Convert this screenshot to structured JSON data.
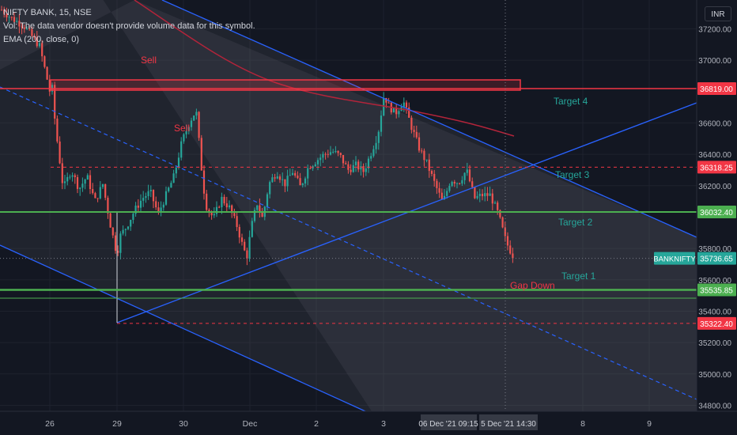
{
  "header": {
    "symbol_line": "NIFTY BANK, 15, NSE",
    "volume_note": "Vol: The data vendor doesn't provide volume data for this symbol.",
    "ema_label": "EMA (200, close, 0)"
  },
  "currency_button": "INR",
  "colors": {
    "background": "#131722",
    "up": "#26a69a",
    "down": "#ef5350",
    "channel": "#2962ff",
    "resistance": "#f23645",
    "support": "#4caf50",
    "ema": "#b2243a",
    "target_text": "#26a69a",
    "sell_text": "#f23645",
    "axis_text": "#b2b5be"
  },
  "chart_data": {
    "type": "candlestick",
    "symbol": "NIFTY BANK",
    "interval": "15",
    "exchange": "NSE",
    "y_axis": {
      "range": [
        34750,
        37320
      ],
      "ticks": [
        "37200.00",
        "37000.00",
        "36600.00",
        "36400.00",
        "36200.00",
        "35800.00",
        "35600.00",
        "35400.00",
        "35200.00",
        "35000.00",
        "34800.00"
      ]
    },
    "x_axis": {
      "ticks": [
        "26",
        "29",
        "30",
        "Dec",
        "2",
        "3",
        "8",
        "9"
      ],
      "crosshair_labels": [
        "06 Dec '21",
        "09:15",
        "5 Dec '21",
        "14:30"
      ]
    },
    "price_labels": [
      {
        "text": "36819.00",
        "value": 36819,
        "kind": "resistance"
      },
      {
        "text": "36318.25",
        "value": 36318.25,
        "kind": "dashed-resistance"
      },
      {
        "text": "36032.40",
        "value": 36032.4,
        "kind": "support"
      },
      {
        "text": "35736.65",
        "value": 35736.65,
        "kind": "last"
      },
      {
        "text": "35535.85",
        "value": 35535.85,
        "kind": "support"
      },
      {
        "text": "35322.40",
        "value": 35322.4,
        "kind": "dashed-support"
      }
    ],
    "last_price_symbol": "BANKNIFTY",
    "annotations": [
      {
        "text": "Sell",
        "kind": "sell"
      },
      {
        "text": "Sell",
        "kind": "sell"
      },
      {
        "text": "Target 4",
        "kind": "target"
      },
      {
        "text": "Target 3",
        "kind": "target"
      },
      {
        "text": "Target 2",
        "kind": "target"
      },
      {
        "text": "Target 1",
        "kind": "target"
      },
      {
        "text": "Gap Down",
        "kind": "sell"
      }
    ],
    "price_path": [
      [
        0,
        37330
      ],
      [
        14,
        37270
      ],
      [
        30,
        37220
      ],
      [
        50,
        37090
      ],
      [
        60,
        36870
      ],
      [
        63,
        36800
      ],
      [
        66,
        36820
      ],
      [
        70,
        36580
      ],
      [
        80,
        36180
      ],
      [
        90,
        36300
      ],
      [
        100,
        36180
      ],
      [
        110,
        36260
      ],
      [
        120,
        36100
      ],
      [
        130,
        36210
      ],
      [
        140,
        35940
      ],
      [
        148,
        35760
      ],
      [
        152,
        35880
      ],
      [
        160,
        35940
      ],
      [
        170,
        36040
      ],
      [
        180,
        36120
      ],
      [
        190,
        36160
      ],
      [
        200,
        36020
      ],
      [
        210,
        36140
      ],
      [
        220,
        36260
      ],
      [
        230,
        36480
      ],
      [
        240,
        36610
      ],
      [
        248,
        36680
      ],
      [
        255,
        36300
      ],
      [
        260,
        36080
      ],
      [
        270,
        35990
      ],
      [
        280,
        36120
      ],
      [
        290,
        36060
      ],
      [
        300,
        35940
      ],
      [
        306,
        35830
      ],
      [
        312,
        35740
      ],
      [
        318,
        35940
      ],
      [
        325,
        36090
      ],
      [
        332,
        35990
      ],
      [
        340,
        36210
      ],
      [
        350,
        36290
      ],
      [
        360,
        36210
      ],
      [
        370,
        36290
      ],
      [
        380,
        36190
      ],
      [
        390,
        36320
      ],
      [
        400,
        36360
      ],
      [
        410,
        36400
      ],
      [
        420,
        36420
      ],
      [
        430,
        36390
      ],
      [
        440,
        36300
      ],
      [
        450,
        36330
      ],
      [
        460,
        36290
      ],
      [
        470,
        36420
      ],
      [
        478,
        36530
      ],
      [
        486,
        36790
      ],
      [
        490,
        36720
      ],
      [
        500,
        36660
      ],
      [
        510,
        36740
      ],
      [
        520,
        36580
      ],
      [
        530,
        36440
      ],
      [
        540,
        36340
      ],
      [
        550,
        36210
      ],
      [
        560,
        36090
      ],
      [
        570,
        36240
      ],
      [
        580,
        36220
      ],
      [
        590,
        36300
      ],
      [
        600,
        36120
      ],
      [
        610,
        36140
      ],
      [
        620,
        36140
      ],
      [
        630,
        36020
      ],
      [
        640,
        35840
      ],
      [
        650,
        35740
      ]
    ]
  }
}
